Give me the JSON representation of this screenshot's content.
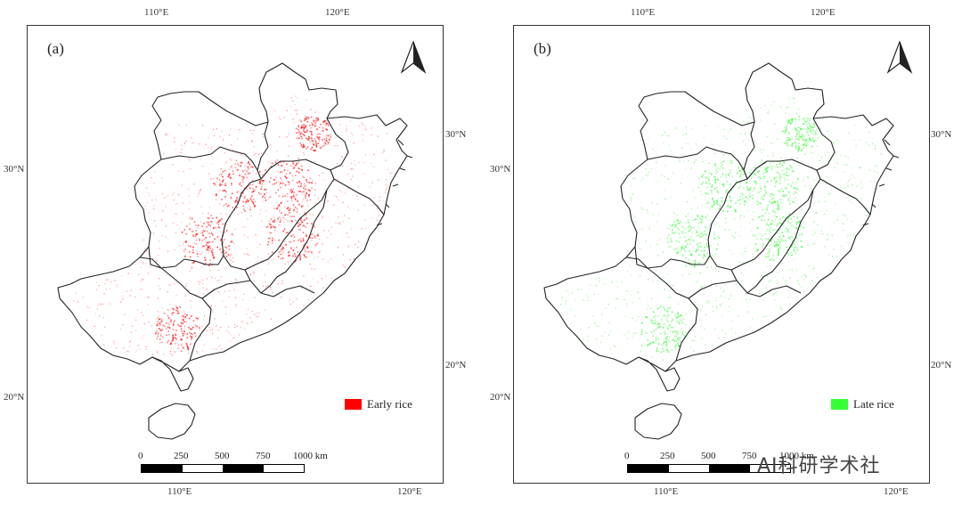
{
  "panels": [
    {
      "label": "(a)",
      "legend": "Early rice",
      "color": "#ff0000",
      "dot_color": "#ff6666"
    },
    {
      "label": "(b)",
      "legend": "Late rice",
      "color": "#33ff33",
      "dot_color": "#66ee66"
    }
  ],
  "ticks": {
    "top_left": "110°E",
    "top_right": "120°E",
    "bottom_left": "110°E",
    "bottom_right": "120°E",
    "left_top": "30°N",
    "left_bottom": "20°N",
    "right_top": "30°N",
    "right_bottom": "20°N"
  },
  "scale": {
    "s0": "0",
    "s250": "250",
    "s500": "500",
    "s750": "750",
    "s1000": "1000 km"
  },
  "watermark": "AI科研学术社"
}
